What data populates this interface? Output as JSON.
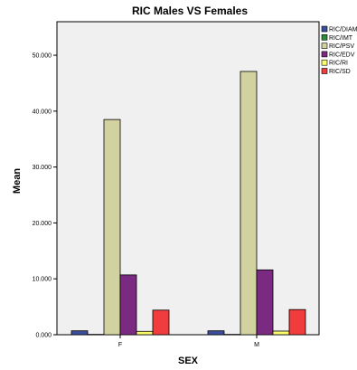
{
  "chart_data": {
    "type": "bar",
    "title": "RIC Males VS Females",
    "xlabel": "SEX",
    "ylabel": "Mean",
    "categories": [
      "F",
      "M"
    ],
    "ylim": [
      0,
      56000
    ],
    "yticks": [
      0,
      10000,
      20000,
      30000,
      40000,
      50000
    ],
    "ytick_labels": [
      "0.000",
      "10.000",
      "20.000",
      "30.000",
      "40.000",
      "50.000"
    ],
    "grid": false,
    "legend_position": "right",
    "series": [
      {
        "name": "RIC/DIAM",
        "color": "#3d4f9c",
        "values": [
          700,
          700
        ]
      },
      {
        "name": "RIC/IMT",
        "color": "#2f8a3c",
        "values": [
          60,
          60
        ]
      },
      {
        "name": "RIC/PSV",
        "color": "#d2d1a0",
        "values": [
          38500,
          47100
        ]
      },
      {
        "name": "RIC/EDV",
        "color": "#7b2a82",
        "values": [
          10700,
          11600
        ]
      },
      {
        "name": "RIC/RI",
        "color": "#fafa6e",
        "values": [
          600,
          650
        ]
      },
      {
        "name": "RIC/SD",
        "color": "#f03c3c",
        "values": [
          4400,
          4500
        ]
      }
    ]
  }
}
